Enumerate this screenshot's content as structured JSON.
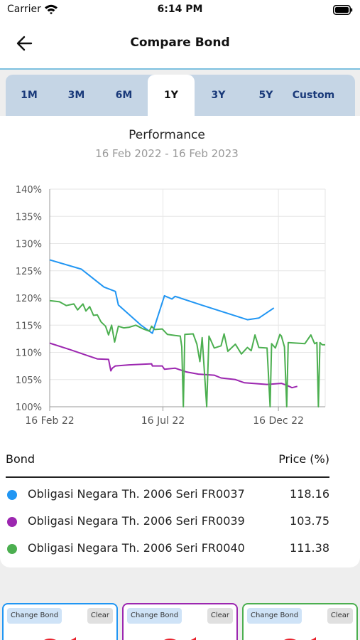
{
  "status_bar": {
    "carrier": "Carrier",
    "time": "6:14 PM"
  },
  "header": {
    "title": "Compare Bond",
    "back_icon": "arrow-left-icon"
  },
  "tabs": [
    {
      "label": "1M",
      "active": false
    },
    {
      "label": "3M",
      "active": false
    },
    {
      "label": "6M",
      "active": false
    },
    {
      "label": "1Y",
      "active": true
    },
    {
      "label": "3Y",
      "active": false
    },
    {
      "label": "5Y",
      "active": false
    },
    {
      "label": "Custom",
      "active": false
    }
  ],
  "chart": {
    "title": "Performance",
    "subtitle": "16 Feb 2022 - 16 Feb 2023"
  },
  "chart_data": {
    "type": "line",
    "title": "Performance",
    "subtitle": "16 Feb 2022 - 16 Feb 2023",
    "xlabel": "",
    "ylabel": "",
    "ylim": [
      100,
      140
    ],
    "xlim": [
      "2022-02-16",
      "2023-02-16"
    ],
    "x_ticks": [
      {
        "date": "2022-02-16",
        "label": "16 Feb 22"
      },
      {
        "date": "2022-07-16",
        "label": "16 Jul 22"
      },
      {
        "date": "2022-12-16",
        "label": "16 Dec 22"
      }
    ],
    "y_ticks": [
      "100%",
      "105%",
      "110%",
      "115%",
      "120%",
      "125%",
      "130%",
      "135%",
      "140%"
    ],
    "y_tick_values": [
      100,
      105,
      110,
      115,
      120,
      125,
      130,
      135,
      140
    ],
    "grid": true,
    "legend": "none",
    "series": [
      {
        "name": "Obligasi Negara Th. 2006 Seri FR0037",
        "color": "#2196f3",
        "points": [
          [
            "2022-02-16",
            127.0
          ],
          [
            "2022-03-30",
            125.3
          ],
          [
            "2022-04-29",
            122.0
          ],
          [
            "2022-05-14",
            121.2
          ],
          [
            "2022-05-18",
            118.7
          ],
          [
            "2022-06-17",
            115.0
          ],
          [
            "2022-07-02",
            113.5
          ],
          [
            "2022-07-18",
            120.4
          ],
          [
            "2022-07-28",
            119.8
          ],
          [
            "2022-08-01",
            120.3
          ],
          [
            "2022-09-05",
            118.7
          ],
          [
            "2022-11-05",
            116.0
          ],
          [
            "2022-11-20",
            116.3
          ],
          [
            "2022-12-10",
            118.16
          ]
        ]
      },
      {
        "name": "Obligasi Negara Th. 2006 Seri FR0039",
        "color": "#9c27b0",
        "points": [
          [
            "2022-02-16",
            111.7
          ],
          [
            "2022-03-15",
            110.5
          ],
          [
            "2022-04-20",
            108.8
          ],
          [
            "2022-05-05",
            108.7
          ],
          [
            "2022-05-08",
            106.6
          ],
          [
            "2022-05-10",
            107.1
          ],
          [
            "2022-05-14",
            107.5
          ],
          [
            "2022-06-01",
            107.7
          ],
          [
            "2022-07-01",
            107.9
          ],
          [
            "2022-07-02",
            107.5
          ],
          [
            "2022-07-15",
            107.5
          ],
          [
            "2022-07-18",
            106.9
          ],
          [
            "2022-08-01",
            107.1
          ],
          [
            "2022-08-16",
            106.4
          ],
          [
            "2022-09-01",
            106.0
          ],
          [
            "2022-09-22",
            105.8
          ],
          [
            "2022-10-01",
            105.3
          ],
          [
            "2022-10-20",
            105.0
          ],
          [
            "2022-11-01",
            104.4
          ],
          [
            "2022-12-01",
            104.1
          ],
          [
            "2022-12-20",
            104.3
          ],
          [
            "2022-12-28",
            103.9
          ],
          [
            "2023-01-03",
            103.5
          ],
          [
            "2023-01-10",
            103.75
          ]
        ]
      },
      {
        "name": "Obligasi Negara Th. 2006 Seri FR0040",
        "color": "#4caf50",
        "points": [
          [
            "2022-02-16",
            119.5
          ],
          [
            "2022-03-01",
            119.3
          ],
          [
            "2022-03-10",
            118.6
          ],
          [
            "2022-03-20",
            118.9
          ],
          [
            "2022-03-25",
            117.8
          ],
          [
            "2022-04-01",
            118.9
          ],
          [
            "2022-04-05",
            117.6
          ],
          [
            "2022-04-10",
            118.4
          ],
          [
            "2022-04-15",
            116.8
          ],
          [
            "2022-04-20",
            116.9
          ],
          [
            "2022-04-25",
            115.6
          ],
          [
            "2022-05-01",
            114.8
          ],
          [
            "2022-05-05",
            113.2
          ],
          [
            "2022-05-09",
            115.0
          ],
          [
            "2022-05-13",
            111.9
          ],
          [
            "2022-05-18",
            114.8
          ],
          [
            "2022-05-25",
            114.5
          ],
          [
            "2022-06-01",
            114.6
          ],
          [
            "2022-06-10",
            115.0
          ],
          [
            "2022-06-20",
            114.3
          ],
          [
            "2022-06-28",
            113.9
          ],
          [
            "2022-07-01",
            114.8
          ],
          [
            "2022-07-05",
            114.2
          ],
          [
            "2022-07-15",
            114.3
          ],
          [
            "2022-07-22",
            113.3
          ],
          [
            "2022-08-01",
            113.1
          ],
          [
            "2022-08-08",
            113.0
          ],
          [
            "2022-08-10",
            111.0
          ],
          [
            "2022-08-12",
            100.0
          ],
          [
            "2022-08-14",
            113.3
          ],
          [
            "2022-08-25",
            113.4
          ],
          [
            "2022-08-30",
            111.5
          ],
          [
            "2022-09-03",
            108.3
          ],
          [
            "2022-09-06",
            112.7
          ],
          [
            "2022-09-12",
            100.0
          ],
          [
            "2022-09-15",
            113.0
          ],
          [
            "2022-09-22",
            110.8
          ],
          [
            "2022-10-01",
            111.2
          ],
          [
            "2022-10-05",
            113.4
          ],
          [
            "2022-10-10",
            110.2
          ],
          [
            "2022-10-20",
            111.5
          ],
          [
            "2022-10-28",
            109.7
          ],
          [
            "2022-11-05",
            110.9
          ],
          [
            "2022-11-10",
            110.3
          ],
          [
            "2022-11-15",
            113.2
          ],
          [
            "2022-11-20",
            110.9
          ],
          [
            "2022-12-01",
            110.8
          ],
          [
            "2022-12-05",
            100.0
          ],
          [
            "2022-12-07",
            111.6
          ],
          [
            "2022-12-12",
            110.8
          ],
          [
            "2022-12-18",
            113.3
          ],
          [
            "2022-12-20",
            113.0
          ],
          [
            "2022-12-24",
            111.0
          ],
          [
            "2022-12-27",
            100.0
          ],
          [
            "2022-12-29",
            111.8
          ],
          [
            "2023-01-20",
            111.6
          ],
          [
            "2023-01-28",
            113.2
          ],
          [
            "2023-02-02",
            111.6
          ],
          [
            "2023-02-05",
            111.8
          ],
          [
            "2023-02-07",
            100.0
          ],
          [
            "2023-02-09",
            111.8
          ],
          [
            "2023-02-12",
            111.4
          ],
          [
            "2023-02-16",
            111.38
          ]
        ]
      }
    ]
  },
  "table": {
    "bond_header": "Bond",
    "price_header": "Price (%)",
    "rows": [
      {
        "name": "Obligasi Negara Th. 2006 Seri FR0037",
        "price": "118.16",
        "color": "#2196f3"
      },
      {
        "name": "Obligasi Negara Th. 2006 Seri FR0039",
        "price": "103.75",
        "color": "#9c27b0"
      },
      {
        "name": "Obligasi Negara Th. 2006 Seri FR0040",
        "price": "111.38",
        "color": "#4caf50"
      }
    ]
  },
  "selectors": [
    {
      "change_label": "Change Bond",
      "clear_label": "Clear",
      "border_color": "#2196f3"
    },
    {
      "change_label": "Change Bond",
      "clear_label": "Clear",
      "border_color": "#9c27b0"
    },
    {
      "change_label": "Change Bond",
      "clear_label": "Clear",
      "border_color": "#4caf50"
    }
  ]
}
